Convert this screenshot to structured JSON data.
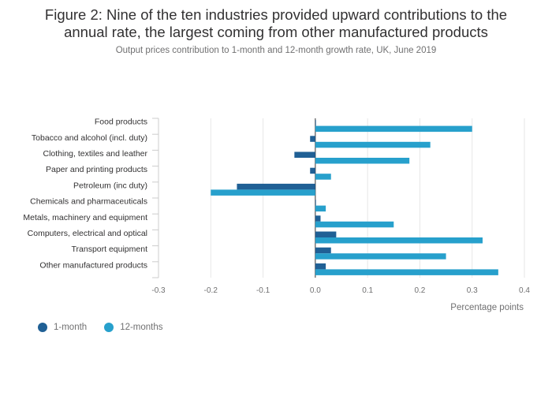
{
  "title_lines": [
    "Figure 2: Nine of the ten industries provided upward contributions to the",
    "annual rate, the largest coming from other manufactured products"
  ],
  "subtitle": "Output prices contribution to 1-month and 12-month growth rate, UK, June 2019",
  "chart_data": {
    "type": "bar",
    "orientation": "horizontal",
    "categories": [
      "Food products",
      "Tobacco and alcohol (incl. duty)",
      "Clothing, textiles and leather",
      "Paper and printing products",
      "Petroleum (inc duty)",
      "Chemicals and pharmaceuticals",
      "Metals, machinery and equipment",
      "Computers, electrical and optical",
      "Transport equipment",
      "Other manufactured products"
    ],
    "series": [
      {
        "name": "1-month",
        "color": "#206095",
        "values": [
          0.0,
          -0.01,
          -0.04,
          -0.01,
          -0.15,
          0.0,
          0.01,
          0.04,
          0.03,
          0.02
        ]
      },
      {
        "name": "12-months",
        "color": "#27a0cc",
        "values": [
          0.3,
          0.22,
          0.18,
          0.03,
          -0.2,
          0.02,
          0.15,
          0.32,
          0.25,
          0.35
        ]
      }
    ],
    "xlabel": "Percentage points",
    "xlim": [
      -0.3,
      0.4
    ],
    "xticks": [
      "-0.3",
      "-0.2",
      "-0.1",
      "0.0",
      "0.1",
      "0.2",
      "0.3",
      "0.4"
    ],
    "grid": true,
    "legend_position": "bottom-left"
  }
}
